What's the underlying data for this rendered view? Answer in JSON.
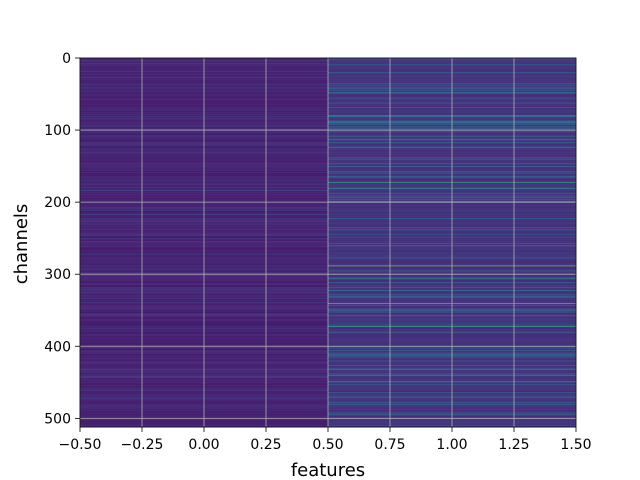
{
  "chart_data": {
    "type": "heatmap",
    "xlabel": "features",
    "ylabel": "channels",
    "xlim": [
      -0.5,
      1.5
    ],
    "ylim": [
      512,
      0
    ],
    "columns": 2,
    "rows": 512,
    "x_ticks": [
      "−0.50",
      "−0.25",
      "0.00",
      "0.25",
      "0.50",
      "0.75",
      "1.00",
      "1.25",
      "1.50"
    ],
    "x_tick_values": [
      -0.5,
      -0.25,
      0.0,
      0.25,
      0.5,
      0.75,
      1.0,
      1.25,
      1.5
    ],
    "y_ticks": [
      "0",
      "100",
      "200",
      "300",
      "400",
      "500"
    ],
    "y_tick_values": [
      0,
      100,
      200,
      300,
      400,
      500
    ],
    "grid": true,
    "colormap": "viridis",
    "column_baseline": [
      0.07,
      0.12
    ],
    "highlights": [
      {
        "col": 1,
        "row": 20,
        "v": 0.35
      },
      {
        "col": 1,
        "row": 35,
        "v": 0.3
      },
      {
        "col": 1,
        "row": 62,
        "v": 0.32
      },
      {
        "col": 1,
        "row": 80,
        "v": 0.42
      },
      {
        "col": 1,
        "row": 88,
        "v": 0.38
      },
      {
        "col": 1,
        "row": 95,
        "v": 0.33
      },
      {
        "col": 1,
        "row": 138,
        "v": 0.36
      },
      {
        "col": 1,
        "row": 150,
        "v": 0.35
      },
      {
        "col": 1,
        "row": 172,
        "v": 0.62
      },
      {
        "col": 1,
        "row": 180,
        "v": 0.4
      },
      {
        "col": 1,
        "row": 199,
        "v": 0.72
      },
      {
        "col": 1,
        "row": 222,
        "v": 0.33
      },
      {
        "col": 1,
        "row": 260,
        "v": 0.42
      },
      {
        "col": 1,
        "row": 288,
        "v": 0.78
      },
      {
        "col": 1,
        "row": 305,
        "v": 0.34
      },
      {
        "col": 1,
        "row": 322,
        "v": 0.4
      },
      {
        "col": 1,
        "row": 330,
        "v": 0.36
      },
      {
        "col": 1,
        "row": 340,
        "v": 0.7
      },
      {
        "col": 1,
        "row": 348,
        "v": 0.38
      },
      {
        "col": 1,
        "row": 372,
        "v": 0.6
      },
      {
        "col": 1,
        "row": 420,
        "v": 0.32
      },
      {
        "col": 1,
        "row": 440,
        "v": 0.42
      },
      {
        "col": 1,
        "row": 470,
        "v": 0.45
      },
      {
        "col": 1,
        "row": 478,
        "v": 0.38
      },
      {
        "col": 1,
        "row": 492,
        "v": 0.33
      },
      {
        "col": 0,
        "row": 183,
        "v": 0.22
      },
      {
        "col": 0,
        "row": 355,
        "v": 0.2
      },
      {
        "col": 0,
        "row": 432,
        "v": 0.22
      }
    ]
  }
}
